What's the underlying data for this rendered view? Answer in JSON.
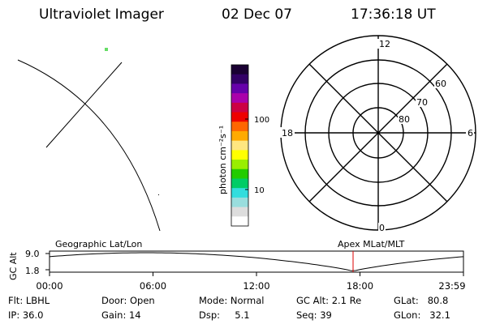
{
  "header": {
    "instrument": "Ultraviolet Imager",
    "date": "02 Dec 07",
    "time": "17:36:18 UT"
  },
  "colorbar": {
    "unit_label": "photon cm⁻²s⁻¹",
    "tick_labels": [
      "100",
      "10"
    ],
    "colors": [
      "#1a0033",
      "#330066",
      "#6600aa",
      "#aa00aa",
      "#cc0044",
      "#ee0000",
      "#ff6600",
      "#ffaa00",
      "#ffe680",
      "#ffff00",
      "#99ee00",
      "#22cc00",
      "#00cc66",
      "#33dddd",
      "#99dddd",
      "#dddddd",
      "#ffffff"
    ]
  },
  "polar_plot": {
    "mlt_labels": {
      "top": "12",
      "left": "18",
      "right": "6",
      "bottom": "0"
    },
    "lat_labels": [
      "60",
      "70",
      "80"
    ]
  },
  "altitude_plot": {
    "axis_label": "GC Alt",
    "y_ticks": [
      "9.0",
      "1.8"
    ],
    "left_label": "Geographic Lat/Lon",
    "right_label": "Apex MLat/MLT",
    "x_ticks": [
      "00:00",
      "06:00",
      "12:00",
      "18:00",
      "23:59"
    ],
    "current_time_marker_hours": 17.6
  },
  "status": {
    "filter": "Flt: LBHL",
    "ip": "IP: 36.0",
    "door": "Door: Open",
    "gain": "Gain: 14",
    "mode": "Mode: Normal",
    "dsp": "Dsp:     5.1",
    "gc_alt": "GC Alt: 2.1 Re",
    "seq": "Seq: 39",
    "glat": "GLat:   80.8",
    "glon": "GLon:   32.1"
  }
}
